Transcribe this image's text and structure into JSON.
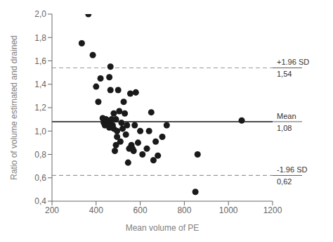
{
  "chart_data": {
    "type": "scatter",
    "x": [
      335,
      365,
      385,
      400,
      410,
      420,
      430,
      435,
      440,
      445,
      450,
      455,
      460,
      460,
      465,
      465,
      470,
      470,
      475,
      480,
      480,
      485,
      490,
      490,
      495,
      495,
      500,
      505,
      510,
      515,
      520,
      525,
      530,
      535,
      540,
      545,
      550,
      555,
      560,
      565,
      570,
      575,
      580,
      590,
      600,
      610,
      630,
      640,
      650,
      660,
      670,
      680,
      700,
      720,
      850,
      860,
      1060
    ],
    "values": [
      1.75,
      2.0,
      1.65,
      1.38,
      1.25,
      1.45,
      1.11,
      1.07,
      1.05,
      1.1,
      1.09,
      1.07,
      1.03,
      1.46,
      1.35,
      1.55,
      1.1,
      1.05,
      1.05,
      1.15,
      1.02,
      0.83,
      0.88,
      1.1,
      1.0,
      0.95,
      1.35,
      1.17,
      0.91,
      1.07,
      1.02,
      1.25,
      1.15,
      0.97,
      1.05,
      0.73,
      0.85,
      1.32,
      0.88,
      0.85,
      0.83,
      1.05,
      1.33,
      0.9,
      1.0,
      0.8,
      0.85,
      1.0,
      1.16,
      0.75,
      0.91,
      0.79,
      0.95,
      1.05,
      0.48,
      0.8,
      1.09
    ],
    "color": "#1a1a1a",
    "xlabel": "Mean volume of PE",
    "ylabel": "Ratio of volume estimated and drained",
    "xlim": [
      200,
      1200
    ],
    "ylim": [
      0.4,
      2.0
    ],
    "xticks": [
      200,
      400,
      600,
      800,
      1000,
      1200
    ],
    "yticks": [
      {
        "value": 0.4,
        "label": "0,4"
      },
      {
        "value": 0.6,
        "label": "0,6"
      },
      {
        "value": 0.8,
        "label": "0,8"
      },
      {
        "value": 1.0,
        "label": "1,0"
      },
      {
        "value": 1.2,
        "label": "1,2"
      },
      {
        "value": 1.4,
        "label": "1,4"
      },
      {
        "value": 1.6,
        "label": "1,6"
      },
      {
        "value": 1.8,
        "label": "1,8"
      },
      {
        "value": 2.0,
        "label": "2,0"
      }
    ],
    "grid": false,
    "reference_lines": [
      {
        "value": 1.54,
        "label": "+1.96 SD",
        "value_label": "1,54",
        "color": "#999999",
        "line_style": "dashed"
      },
      {
        "value": 1.08,
        "label": "Mean",
        "value_label": "1,08",
        "color": "#111111",
        "line_style": "solid"
      },
      {
        "value": 0.62,
        "label": "-1.96 SD",
        "value_label": "0,62",
        "color": "#999999",
        "line_style": "dashed"
      }
    ]
  }
}
